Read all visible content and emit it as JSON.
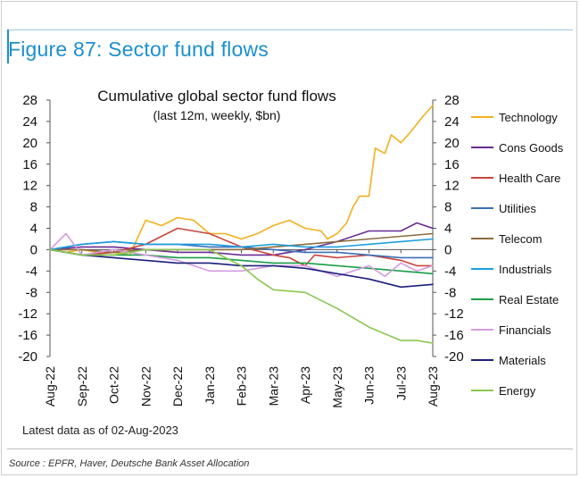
{
  "figure": {
    "title": "Figure 87: Sector fund flows",
    "note": "Latest data as of 02-Aug-2023",
    "source": "Source : EPFR, Haver, Deutsche Bank Asset Allocation"
  },
  "chart_data": {
    "type": "line",
    "title": "Cumulative global sector fund flows",
    "subtitle": "(last 12m, weekly, $bn)",
    "ylim": [
      -20,
      28
    ],
    "yticks": [
      28,
      24,
      20,
      16,
      12,
      8,
      4,
      0,
      -4,
      -8,
      -12,
      -16,
      -20
    ],
    "xticks": [
      "Aug-22",
      "Sep-22",
      "Oct-22",
      "Nov-22",
      "Dec-22",
      "Jan-23",
      "Feb-23",
      "Mar-23",
      "Apr-23",
      "May-23",
      "Jun-23",
      "Jul-23",
      "Aug-23"
    ],
    "grid": false,
    "legend": "right",
    "series": [
      {
        "name": "Technology",
        "color": "#f2b01e",
        "x": [
          0,
          0.5,
          1,
          1.5,
          2,
          2.5,
          3,
          3.5,
          4,
          4.5,
          5,
          5.5,
          6,
          6.5,
          7,
          7.5,
          8,
          8.5,
          8.7,
          9,
          9.3,
          9.5,
          9.7,
          10,
          10.2,
          10.5,
          10.7,
          11,
          11.3,
          11.7,
          12
        ],
        "values": [
          0,
          -0.5,
          0,
          -0.5,
          -0.5,
          -1,
          5.5,
          4.5,
          6,
          5.5,
          3,
          3,
          2,
          3,
          4.5,
          5.5,
          4,
          3.5,
          2,
          3,
          5,
          8,
          10,
          10,
          19,
          18,
          21.5,
          20,
          22,
          25,
          27
        ]
      },
      {
        "name": "Cons Goods",
        "color": "#6a2c91",
        "x": [
          0,
          1,
          2,
          3,
          4,
          5,
          6,
          7,
          8,
          9,
          10,
          11,
          11.5,
          12
        ],
        "values": [
          0,
          0.5,
          0.5,
          0,
          -0.5,
          -0.5,
          -1,
          -1,
          0,
          1.5,
          3.5,
          3.5,
          5,
          4
        ]
      },
      {
        "name": "Health Care",
        "color": "#c9453c",
        "x": [
          0,
          1,
          2,
          3,
          3.5,
          4,
          5,
          6,
          7,
          7.5,
          8,
          8.3,
          9,
          10,
          11,
          11.5,
          12
        ],
        "values": [
          0,
          -1,
          -0.5,
          1,
          2.5,
          4,
          3,
          0.5,
          -1,
          -1.5,
          -3,
          -1,
          -1.5,
          -1,
          -2,
          -3,
          -3
        ]
      },
      {
        "name": "Utilities",
        "color": "#3b6fb5",
        "x": [
          0,
          1,
          2,
          3,
          4,
          5,
          6,
          7,
          8,
          9,
          10,
          11,
          12
        ],
        "values": [
          0,
          1,
          1.5,
          1,
          1,
          0.5,
          0.5,
          0,
          -0.5,
          -0.5,
          -1,
          -1.5,
          -1.5
        ]
      },
      {
        "name": "Telecom",
        "color": "#8c6d3e",
        "x": [
          0,
          1,
          2,
          3,
          4,
          5,
          6,
          7,
          8,
          9,
          10,
          11,
          12
        ],
        "values": [
          0,
          0,
          -0.5,
          0,
          0,
          0,
          0,
          0.5,
          1,
          1.5,
          2,
          2.5,
          3
        ]
      },
      {
        "name": "Industrials",
        "color": "#1e9ee0",
        "x": [
          0,
          1,
          2,
          3,
          4,
          5,
          6,
          7,
          8,
          9,
          10,
          11,
          12
        ],
        "values": [
          0,
          1,
          1.5,
          1,
          1,
          1,
          0.5,
          1,
          0.5,
          0.5,
          1,
          1.5,
          2
        ]
      },
      {
        "name": "Real Estate",
        "color": "#1a9e4a",
        "x": [
          0,
          1,
          2,
          3,
          4,
          5,
          6,
          7,
          8,
          9,
          10,
          11,
          12
        ],
        "values": [
          0,
          -1,
          -1,
          -1,
          -1.5,
          -1.5,
          -2,
          -2.5,
          -2.5,
          -3,
          -3.5,
          -4,
          -4.5
        ]
      },
      {
        "name": "Financials",
        "color": "#d59be0",
        "x": [
          0,
          0.5,
          1,
          1.5,
          2,
          3,
          4,
          5,
          6,
          7,
          8,
          9,
          10,
          10.5,
          11,
          11.5,
          12
        ],
        "values": [
          0,
          3,
          -1,
          -0.5,
          0,
          -1,
          -2,
          -4,
          -4,
          -3,
          -3,
          -5,
          -3,
          -5,
          -2.5,
          -4,
          -3
        ]
      },
      {
        "name": "Materials",
        "color": "#1c1f7a",
        "x": [
          0,
          1,
          2,
          3,
          4,
          5,
          6,
          7,
          8,
          9,
          10,
          11,
          12
        ],
        "values": [
          0,
          -1,
          -1.5,
          -2,
          -2.5,
          -2.5,
          -3,
          -3,
          -3.5,
          -4.5,
          -5.5,
          -7,
          -6.5
        ]
      },
      {
        "name": "Energy",
        "color": "#8cc751",
        "x": [
          0,
          1,
          2,
          3,
          4,
          5,
          6,
          6.5,
          7,
          8,
          9,
          10,
          11,
          11.5,
          12
        ],
        "values": [
          0,
          -1,
          -1,
          0,
          0,
          0,
          -3,
          -5.5,
          -7.5,
          -8,
          -11,
          -14.5,
          -17,
          -17,
          -17.5
        ]
      }
    ]
  }
}
